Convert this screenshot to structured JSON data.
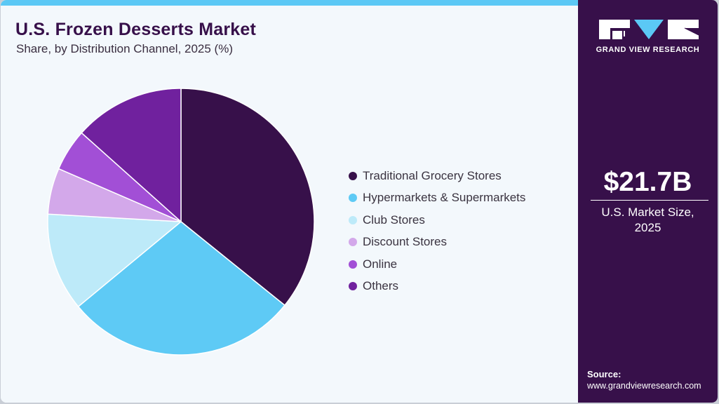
{
  "header": {
    "title": "U.S. Frozen Desserts Market",
    "subtitle": "Share, by Distribution Channel, 2025 (%)"
  },
  "colors": {
    "accent_bar": "#5bc8f5",
    "side_panel": "#37104a",
    "background": "#f3f8fc"
  },
  "chart_data": {
    "type": "pie",
    "title": "U.S. Frozen Desserts Market",
    "subtitle": "Share, by Distribution Channel, 2025 (%)",
    "categories": [
      "Traditional Grocery Stores",
      "Hypermarkets & Supermarkets",
      "Club Stores",
      "Discount Stores",
      "Online",
      "Others"
    ],
    "values": [
      35.8,
      28.2,
      11.9,
      5.6,
      5.1,
      13.4
    ],
    "colors": [
      "#37104a",
      "#5ecaf5",
      "#bdeaf9",
      "#d3a8ea",
      "#a24fd6",
      "#70219e"
    ],
    "start_angle": "12 o'clock, clockwise",
    "legend_position": "right",
    "data_labels": false
  },
  "legend": {
    "items": [
      {
        "label": "Traditional Grocery Stores",
        "color": "#37104a"
      },
      {
        "label": "Hypermarkets & Supermarkets",
        "color": "#5ecaf5"
      },
      {
        "label": "Club Stores",
        "color": "#bdeaf9"
      },
      {
        "label": "Discount Stores",
        "color": "#d3a8ea"
      },
      {
        "label": "Online",
        "color": "#a24fd6"
      },
      {
        "label": "Others",
        "color": "#70219e"
      }
    ]
  },
  "side_panel": {
    "brand": "GRAND VIEW RESEARCH",
    "stat_value": "$21.7B",
    "stat_label_line1": "U.S. Market Size,",
    "stat_label_line2": "2025",
    "source_label": "Source:",
    "source_url": "www.grandviewresearch.com"
  }
}
